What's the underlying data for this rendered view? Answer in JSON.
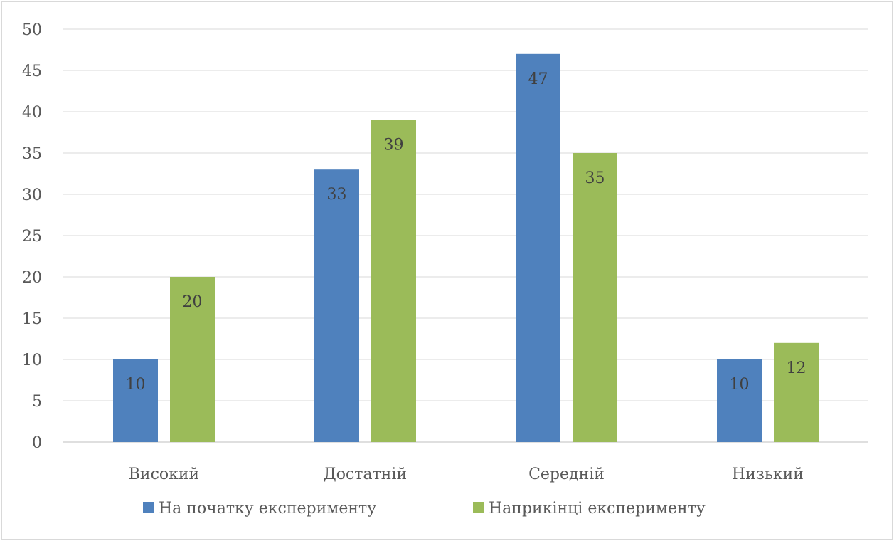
{
  "chart_data": {
    "type": "bar",
    "categories": [
      "Високий",
      "Достатній",
      "Середній",
      "Низький"
    ],
    "series": [
      {
        "name": "На початку експерименту",
        "values": [
          10,
          33,
          47,
          10
        ],
        "color": "#4f81bd"
      },
      {
        "name": "Наприкінці експерименту",
        "values": [
          20,
          39,
          35,
          12
        ],
        "color": "#9bbb59"
      }
    ],
    "ylim": [
      0,
      50
    ],
    "yticks": [
      0,
      5,
      10,
      15,
      20,
      25,
      30,
      35,
      40,
      45,
      50
    ],
    "grid": true,
    "data_labels": true,
    "legend_position": "bottom"
  }
}
